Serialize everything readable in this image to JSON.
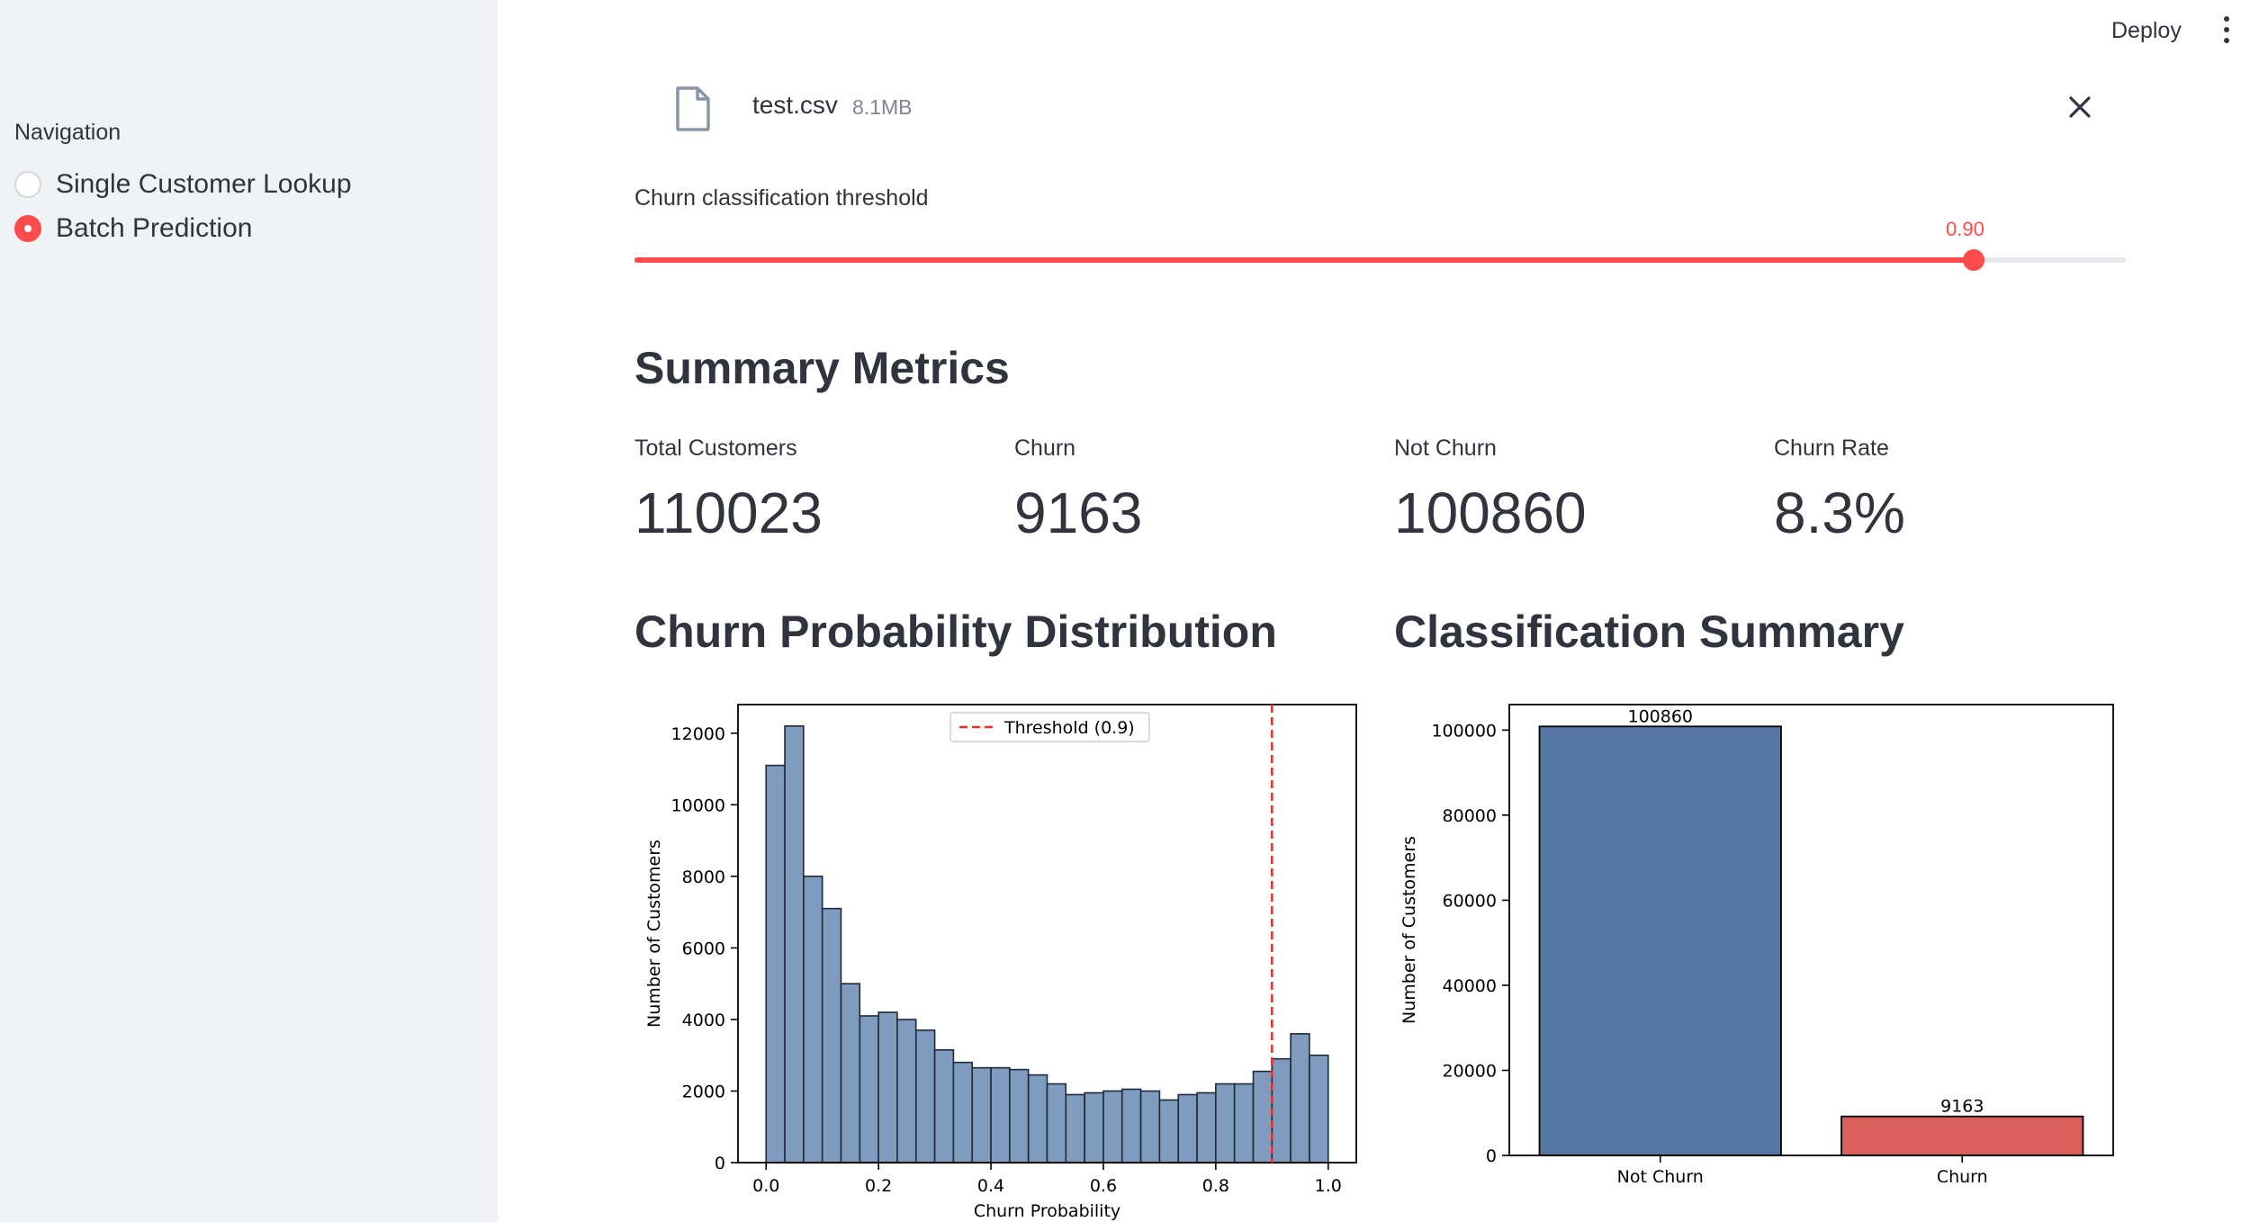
{
  "sidebar": {
    "nav_title": "Navigation",
    "items": [
      {
        "label": "Single Customer Lookup",
        "selected": false
      },
      {
        "label": "Batch Prediction",
        "selected": true
      }
    ]
  },
  "header": {
    "deploy_label": "Deploy",
    "menu_icon": "more-vertical-icon"
  },
  "file": {
    "name": "test.csv",
    "size": "8.1MB",
    "icon": "file-icon",
    "close_icon": "close-icon"
  },
  "slider": {
    "label": "Churn classification threshold",
    "value_text": "0.90",
    "value": 0.9,
    "min": 0.0,
    "max": 1.0,
    "accent_color": "#ff4b4b"
  },
  "summary": {
    "title": "Summary Metrics",
    "metrics": [
      {
        "label": "Total Customers",
        "value": "110023"
      },
      {
        "label": "Churn",
        "value": "9163"
      },
      {
        "label": "Not Churn",
        "value": "100860"
      },
      {
        "label": "Churn Rate",
        "value": "8.3%"
      }
    ]
  },
  "distribution": {
    "title": "Churn Probability Distribution"
  },
  "classification": {
    "title": "Classification Summary"
  },
  "chart_data": [
    {
      "type": "bar",
      "subtype": "histogram",
      "xlabel": "Churn Probability",
      "ylabel": "Number of Customers",
      "xlim": [
        -0.05,
        1.05
      ],
      "ylim": [
        0,
        12800
      ],
      "xticks": [
        "0.0",
        "0.2",
        "0.4",
        "0.6",
        "0.8",
        "1.0"
      ],
      "yticks": [
        "0",
        "2000",
        "4000",
        "6000",
        "8000",
        "10000",
        "12000"
      ],
      "bin_width": 0.0333,
      "bin_starts": [
        0.0,
        0.0333,
        0.0667,
        0.1,
        0.1333,
        0.1667,
        0.2,
        0.2333,
        0.2667,
        0.3,
        0.3333,
        0.3667,
        0.4,
        0.4333,
        0.4667,
        0.5,
        0.5333,
        0.5667,
        0.6,
        0.6333,
        0.6667,
        0.7,
        0.7333,
        0.7667,
        0.8,
        0.8333,
        0.8667,
        0.9,
        0.9333,
        0.9667
      ],
      "values": [
        11100,
        12200,
        8000,
        7100,
        5000,
        4100,
        4200,
        4000,
        3700,
        3150,
        2800,
        2650,
        2650,
        2600,
        2450,
        2200,
        1900,
        1950,
        2000,
        2050,
        2000,
        1750,
        1900,
        1950,
        2200,
        2200,
        2550,
        2900,
        3600,
        3000
      ],
      "bar_color": "#7f9cbf",
      "edge_color": "#1f2a38",
      "threshold": {
        "value": 0.9,
        "color": "#e8302a",
        "legend_label": "Threshold (0.9)"
      },
      "grid": false,
      "legend": "top-center"
    },
    {
      "type": "bar",
      "xlabel": "",
      "ylabel": "Number of Customers",
      "categories": [
        "Not Churn",
        "Churn"
      ],
      "values": [
        100860,
        9163
      ],
      "value_labels": [
        "100860",
        "9163"
      ],
      "colors": [
        "#5677a3",
        "#d9605a"
      ],
      "ylim": [
        0,
        106000
      ],
      "yticks": [
        "0",
        "20000",
        "40000",
        "60000",
        "80000",
        "100000"
      ],
      "grid": false
    }
  ]
}
